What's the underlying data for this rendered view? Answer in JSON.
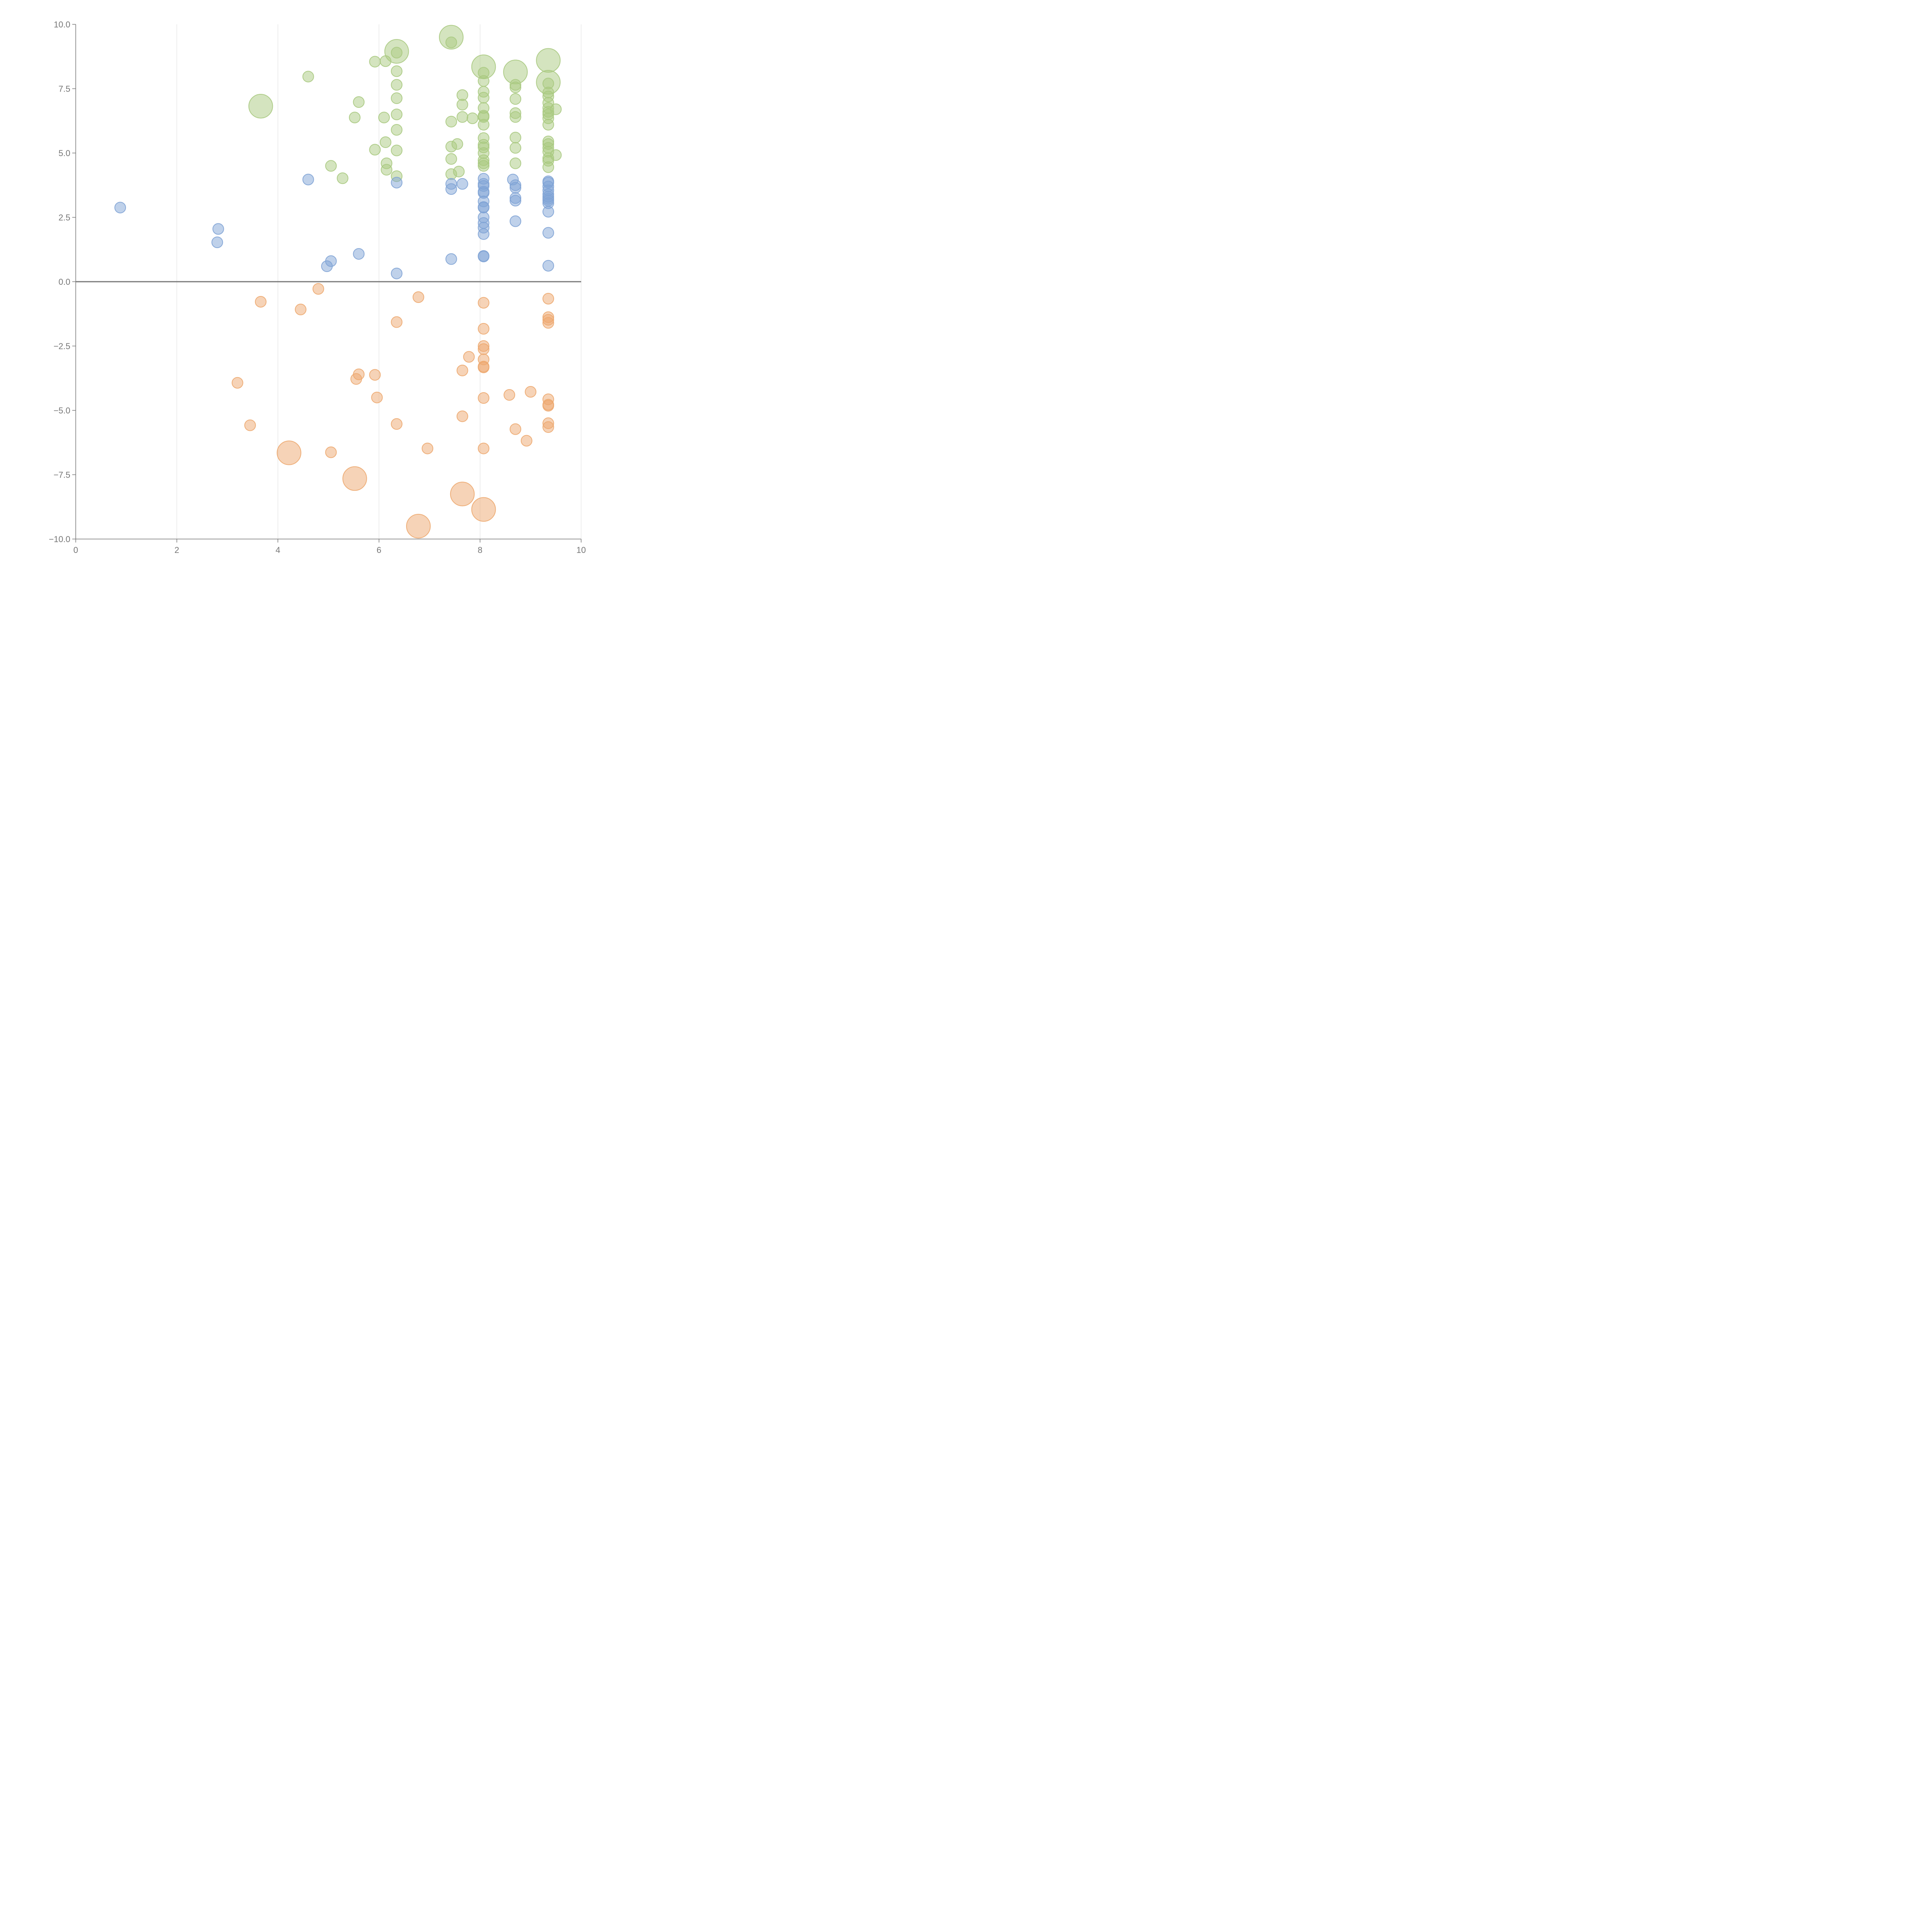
{
  "chart_data": {
    "type": "scatter",
    "title": "",
    "xlabel": "",
    "ylabel": "",
    "xlim": [
      0,
      10
    ],
    "ylim": [
      -10,
      10
    ],
    "grid": "vertical",
    "x_ticks": [
      "0",
      "2",
      "4",
      "6",
      "8",
      "10"
    ],
    "y_ticks": [
      "10.0",
      "7.5",
      "5.0",
      "2.5",
      "0.0",
      "−2.5",
      "−5.0",
      "−7.5",
      "−10.0"
    ],
    "colors": {
      "green": "#a9c97f",
      "blue": "#7fa3d5",
      "orange": "#eda86f"
    },
    "series": [
      {
        "color": "green",
        "points": [
          [
            7.43,
            9.5,
            2.2
          ],
          [
            6.35,
            8.95,
            2.2
          ],
          [
            8.07,
            8.35,
            2.2
          ],
          [
            8.7,
            8.15,
            2.2
          ],
          [
            9.35,
            8.6,
            2.2
          ],
          [
            9.35,
            7.75,
            2.2
          ],
          [
            3.66,
            6.82,
            2.2
          ],
          [
            7.43,
            9.3,
            1
          ],
          [
            6.35,
            8.9,
            1
          ],
          [
            5.92,
            8.55,
            1
          ],
          [
            6.13,
            8.57,
            1
          ],
          [
            4.6,
            7.97,
            1
          ],
          [
            6.35,
            8.18,
            1
          ],
          [
            6.35,
            7.65,
            1
          ],
          [
            6.35,
            7.13,
            1
          ],
          [
            6.35,
            6.5,
            1
          ],
          [
            6.35,
            5.9,
            1
          ],
          [
            6.35,
            5.1,
            1
          ],
          [
            6.35,
            4.1,
            1
          ],
          [
            5.6,
            6.98,
            1
          ],
          [
            5.52,
            6.38,
            1
          ],
          [
            6.1,
            6.38,
            1
          ],
          [
            6.13,
            5.42,
            1
          ],
          [
            5.92,
            5.13,
            1
          ],
          [
            6.15,
            4.6,
            1
          ],
          [
            6.15,
            4.35,
            1
          ],
          [
            5.05,
            4.5,
            1
          ],
          [
            5.28,
            4.02,
            1
          ],
          [
            7.43,
            6.22,
            1
          ],
          [
            7.43,
            5.25,
            1
          ],
          [
            7.43,
            4.77,
            1
          ],
          [
            7.43,
            4.18,
            1
          ],
          [
            7.65,
            7.25,
            1
          ],
          [
            7.65,
            6.88,
            1
          ],
          [
            7.65,
            6.4,
            1
          ],
          [
            7.85,
            6.35,
            1
          ],
          [
            7.55,
            5.35,
            1
          ],
          [
            7.58,
            4.28,
            1
          ],
          [
            8.07,
            8.12,
            1
          ],
          [
            8.07,
            7.8,
            1
          ],
          [
            8.07,
            7.38,
            1
          ],
          [
            8.07,
            7.15,
            1
          ],
          [
            8.07,
            6.75,
            1
          ],
          [
            8.07,
            6.45,
            1
          ],
          [
            8.07,
            6.4,
            1
          ],
          [
            8.07,
            6.1,
            1
          ],
          [
            8.07,
            5.58,
            1
          ],
          [
            8.07,
            5.32,
            1
          ],
          [
            8.07,
            5.22,
            1
          ],
          [
            8.07,
            5.0,
            1
          ],
          [
            8.07,
            4.72,
            1
          ],
          [
            8.07,
            4.6,
            1
          ],
          [
            8.07,
            4.5,
            1
          ],
          [
            8.7,
            7.65,
            1
          ],
          [
            8.7,
            7.55,
            1
          ],
          [
            8.7,
            7.1,
            1
          ],
          [
            8.7,
            6.55,
            1
          ],
          [
            8.7,
            6.4,
            1
          ],
          [
            8.7,
            5.6,
            1
          ],
          [
            8.7,
            5.2,
            1
          ],
          [
            8.7,
            4.6,
            1
          ],
          [
            9.35,
            7.7,
            1
          ],
          [
            9.35,
            7.35,
            1
          ],
          [
            9.35,
            7.2,
            1
          ],
          [
            9.35,
            6.95,
            1
          ],
          [
            9.35,
            6.75,
            1
          ],
          [
            9.35,
            6.6,
            1
          ],
          [
            9.35,
            6.5,
            1
          ],
          [
            9.35,
            6.35,
            1
          ],
          [
            9.35,
            6.1,
            1
          ],
          [
            9.35,
            5.45,
            1
          ],
          [
            9.35,
            5.35,
            1
          ],
          [
            9.35,
            5.2,
            1
          ],
          [
            9.35,
            5.05,
            1
          ],
          [
            9.35,
            4.8,
            1
          ],
          [
            9.35,
            4.7,
            1
          ],
          [
            9.35,
            4.45,
            1
          ],
          [
            9.5,
            6.7,
            1
          ],
          [
            9.5,
            4.92,
            1
          ]
        ]
      },
      {
        "color": "blue",
        "points": [
          [
            0.88,
            2.88,
            1
          ],
          [
            2.82,
            2.05,
            1
          ],
          [
            2.8,
            1.53,
            1
          ],
          [
            4.6,
            3.97,
            1
          ],
          [
            5.6,
            1.08,
            1
          ],
          [
            5.05,
            0.8,
            1
          ],
          [
            4.97,
            0.6,
            1
          ],
          [
            6.35,
            3.85,
            1
          ],
          [
            6.35,
            0.32,
            1
          ],
          [
            7.43,
            3.8,
            1
          ],
          [
            7.43,
            3.6,
            1
          ],
          [
            7.65,
            3.8,
            1
          ],
          [
            7.43,
            0.88,
            1
          ],
          [
            8.07,
            4.0,
            1
          ],
          [
            8.07,
            3.8,
            1
          ],
          [
            8.07,
            3.72,
            1
          ],
          [
            8.07,
            3.5,
            1
          ],
          [
            8.07,
            3.45,
            1
          ],
          [
            8.07,
            3.12,
            1
          ],
          [
            8.07,
            2.9,
            1
          ],
          [
            8.07,
            2.88,
            1
          ],
          [
            8.07,
            2.5,
            1
          ],
          [
            8.07,
            2.28,
            1
          ],
          [
            8.07,
            2.1,
            1
          ],
          [
            8.07,
            1.85,
            1
          ],
          [
            8.07,
            1.0,
            1
          ],
          [
            8.07,
            0.98,
            1
          ],
          [
            8.65,
            3.97,
            1
          ],
          [
            8.7,
            3.75,
            1
          ],
          [
            8.7,
            3.65,
            1
          ],
          [
            8.7,
            3.25,
            1
          ],
          [
            8.7,
            3.15,
            1
          ],
          [
            8.7,
            2.35,
            1
          ],
          [
            9.35,
            3.9,
            1
          ],
          [
            9.35,
            3.85,
            1
          ],
          [
            9.35,
            3.7,
            1
          ],
          [
            9.35,
            3.55,
            1
          ],
          [
            9.35,
            3.4,
            1
          ],
          [
            9.35,
            3.3,
            1
          ],
          [
            9.35,
            3.22,
            1
          ],
          [
            9.35,
            3.15,
            1
          ],
          [
            9.35,
            3.05,
            1
          ],
          [
            9.35,
            2.72,
            1
          ],
          [
            9.35,
            1.9,
            1
          ],
          [
            9.35,
            0.62,
            1
          ]
        ]
      },
      {
        "color": "orange",
        "points": [
          [
            4.22,
            -6.65,
            2.2
          ],
          [
            5.52,
            -7.65,
            2.2
          ],
          [
            7.65,
            -8.25,
            2.2
          ],
          [
            8.07,
            -8.85,
            2.2
          ],
          [
            6.78,
            -9.5,
            2.2
          ],
          [
            4.8,
            -0.28,
            1
          ],
          [
            3.66,
            -0.78,
            1
          ],
          [
            4.45,
            -1.08,
            1
          ],
          [
            6.78,
            -0.6,
            1
          ],
          [
            6.35,
            -1.57,
            1
          ],
          [
            3.2,
            -3.93,
            1
          ],
          [
            3.45,
            -5.58,
            1
          ],
          [
            5.6,
            -3.6,
            1
          ],
          [
            5.55,
            -3.78,
            1
          ],
          [
            5.92,
            -3.62,
            1
          ],
          [
            5.96,
            -4.5,
            1
          ],
          [
            6.35,
            -5.53,
            1
          ],
          [
            5.05,
            -6.63,
            1
          ],
          [
            6.96,
            -6.48,
            1
          ],
          [
            7.65,
            -3.45,
            1
          ],
          [
            7.78,
            -2.92,
            1
          ],
          [
            7.65,
            -5.23,
            1
          ],
          [
            8.07,
            -0.82,
            1
          ],
          [
            8.07,
            -1.83,
            1
          ],
          [
            8.07,
            -2.5,
            1
          ],
          [
            8.07,
            -2.62,
            1
          ],
          [
            8.07,
            -3.02,
            1
          ],
          [
            8.07,
            -3.3,
            1
          ],
          [
            8.07,
            -3.33,
            1
          ],
          [
            8.07,
            -4.52,
            1
          ],
          [
            8.07,
            -6.48,
            1
          ],
          [
            8.58,
            -4.4,
            1
          ],
          [
            9.0,
            -4.28,
            1
          ],
          [
            8.7,
            -5.73,
            1
          ],
          [
            8.92,
            -6.18,
            1
          ],
          [
            9.35,
            -0.66,
            1
          ],
          [
            9.35,
            -1.38,
            1
          ],
          [
            9.35,
            -1.48,
            1
          ],
          [
            9.35,
            -1.6,
            1
          ],
          [
            9.35,
            -4.57,
            1
          ],
          [
            9.35,
            -4.78,
            1
          ],
          [
            9.35,
            -4.82,
            1
          ],
          [
            9.35,
            -5.5,
            1
          ],
          [
            9.35,
            -5.65,
            1
          ]
        ]
      }
    ]
  }
}
